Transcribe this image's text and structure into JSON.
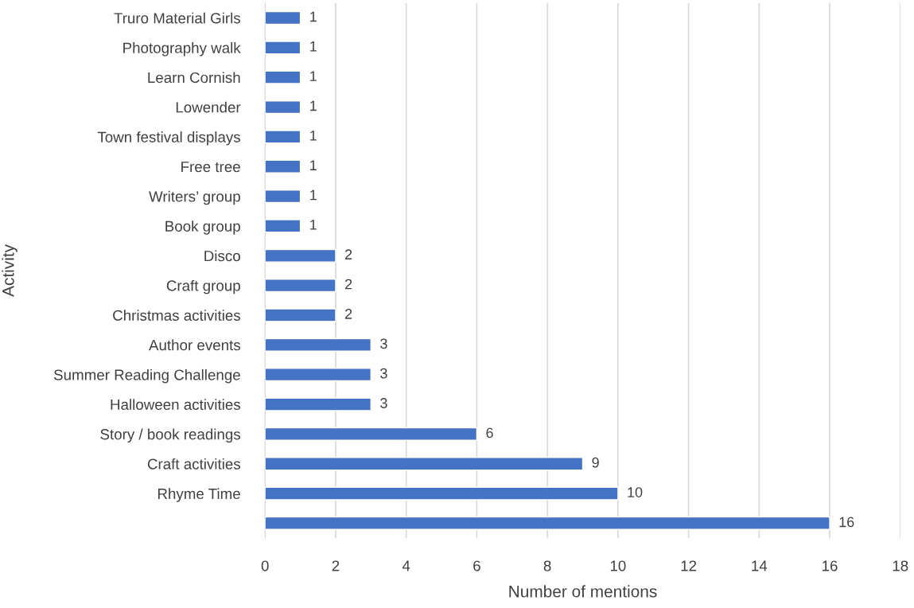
{
  "chart_data": {
    "type": "bar",
    "orientation": "horizontal",
    "xlabel": "Number of mentions",
    "ylabel": "Activity",
    "categories": [
      "Truro Material Girls",
      "Photography walk",
      "Learn Cornish",
      "Lowender",
      "Town festival displays",
      "Free tree",
      "Writers’ group",
      "Book group",
      "Disco",
      "Craft group",
      "Christmas activities",
      "Author events",
      "Summer Reading Challenge",
      "Halloween activities",
      "Story / book readings",
      "Craft activities",
      "Rhyme Time",
      null
    ],
    "values": [
      1,
      1,
      1,
      1,
      1,
      1,
      1,
      1,
      2,
      2,
      2,
      3,
      3,
      3,
      6,
      9,
      10,
      16
    ],
    "color": "#4472c4",
    "xlim": [
      0,
      18
    ],
    "xticks": [
      0,
      2,
      4,
      6,
      8,
      10,
      12,
      14,
      16,
      18
    ],
    "grid": "x",
    "data_labels": true
  }
}
